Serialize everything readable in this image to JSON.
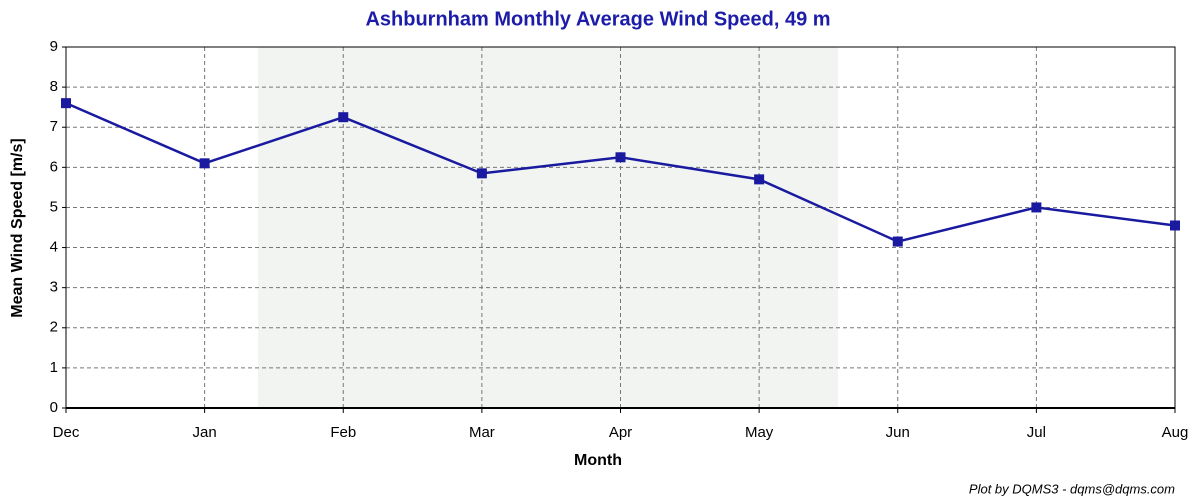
{
  "chart_data": {
    "type": "line",
    "title": "Ashburnham Monthly Average Wind Speed, 49 m",
    "x_label": "Month",
    "y_label": "Mean Wind Speed [m/s]",
    "footnote": "Plot by DQMS3 - dqms@dqms.com",
    "categories": [
      "Dec",
      "Jan",
      "Feb",
      "Mar",
      "Apr",
      "May",
      "Jun",
      "Jul",
      "Aug"
    ],
    "series": [
      {
        "name": "Mean Wind Speed",
        "color": "#1a1aa0",
        "values": [
          7.6,
          6.1,
          7.25,
          5.85,
          6.25,
          5.7,
          4.15,
          5.0,
          4.55
        ]
      }
    ],
    "ylim": [
      0,
      9
    ],
    "yticks": [
      0,
      1,
      2,
      3,
      4,
      5,
      6,
      7,
      8,
      9
    ],
    "grid": true
  }
}
